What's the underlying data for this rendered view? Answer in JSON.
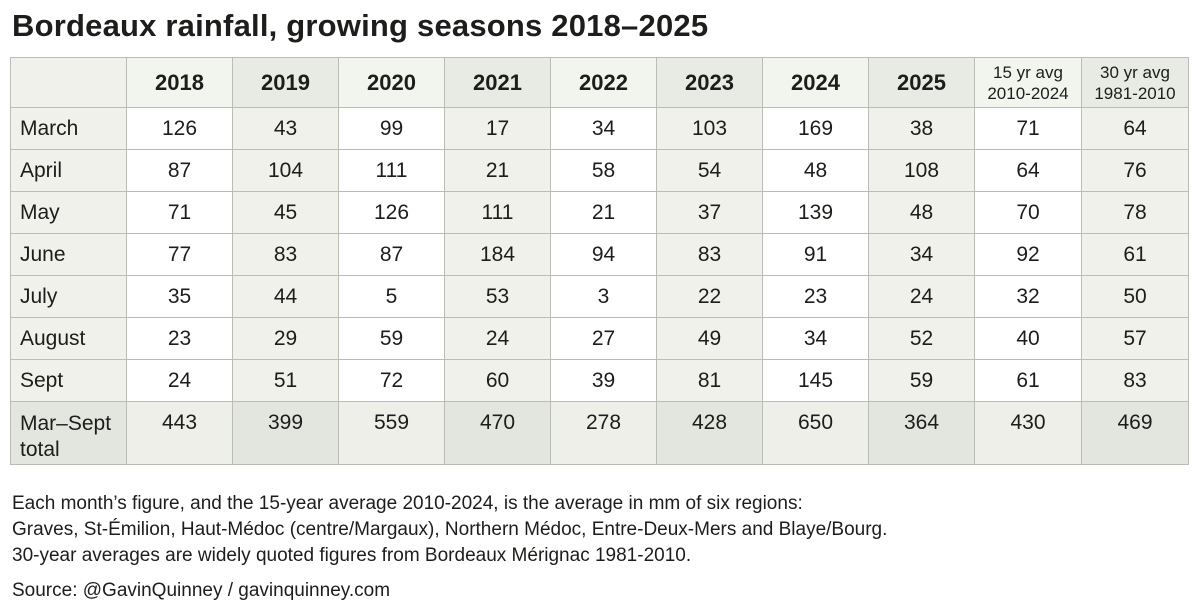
{
  "title": "Bordeaux rainfall, growing seasons 2018–2025",
  "chart_data": {
    "type": "table",
    "title": "Bordeaux rainfall, growing seasons 2018–2025",
    "units": "mm",
    "year_columns": [
      "2018",
      "2019",
      "2020",
      "2021",
      "2022",
      "2023",
      "2024",
      "2025"
    ],
    "avg_columns": [
      {
        "line1": "15 yr avg",
        "line2": "2010-2024"
      },
      {
        "line1": "30 yr avg",
        "line2": "1981-2010"
      }
    ],
    "rows": [
      {
        "label": "March",
        "values": [
          126,
          43,
          99,
          17,
          34,
          103,
          169,
          38,
          71,
          64
        ]
      },
      {
        "label": "April",
        "values": [
          87,
          104,
          111,
          21,
          58,
          54,
          48,
          108,
          64,
          76
        ]
      },
      {
        "label": "May",
        "values": [
          71,
          45,
          126,
          111,
          21,
          37,
          139,
          48,
          70,
          78
        ]
      },
      {
        "label": "June",
        "values": [
          77,
          83,
          87,
          184,
          94,
          83,
          91,
          34,
          92,
          61
        ]
      },
      {
        "label": "July",
        "values": [
          35,
          44,
          5,
          53,
          3,
          22,
          23,
          24,
          32,
          50
        ]
      },
      {
        "label": "August",
        "values": [
          23,
          29,
          59,
          24,
          27,
          49,
          34,
          52,
          40,
          57
        ]
      },
      {
        "label": "Sept",
        "values": [
          24,
          51,
          72,
          60,
          39,
          81,
          145,
          59,
          61,
          83
        ]
      },
      {
        "label": "Mar–Sept total",
        "values": [
          443,
          399,
          559,
          470,
          278,
          428,
          650,
          364,
          430,
          469
        ],
        "is_total": true
      }
    ]
  },
  "notes": [
    "Each month’s figure, and the 15-year average 2010-2024, is the average in mm of six regions:",
    "Graves, St-Émilion, Haut-Médoc (centre/Margaux), Northern Médoc, Entre-Deux-Mers and Blaye/Bourg.",
    "30-year averages are widely quoted figures from Bordeaux Mérignac 1981-2010."
  ],
  "source": "Source: @GavinQuinney / gavinquinney.com",
  "colors": {
    "text": "#1d1d1b",
    "border": "#b9bdb5",
    "header_light": "#f2f4ee",
    "header_dark": "#e7ebe3",
    "label_bg": "#eff1ea",
    "cell_light": "#ffffff",
    "cell_dark": "#eff1ea",
    "total_light": "#edefe8",
    "total_dark": "#e2e6de"
  }
}
